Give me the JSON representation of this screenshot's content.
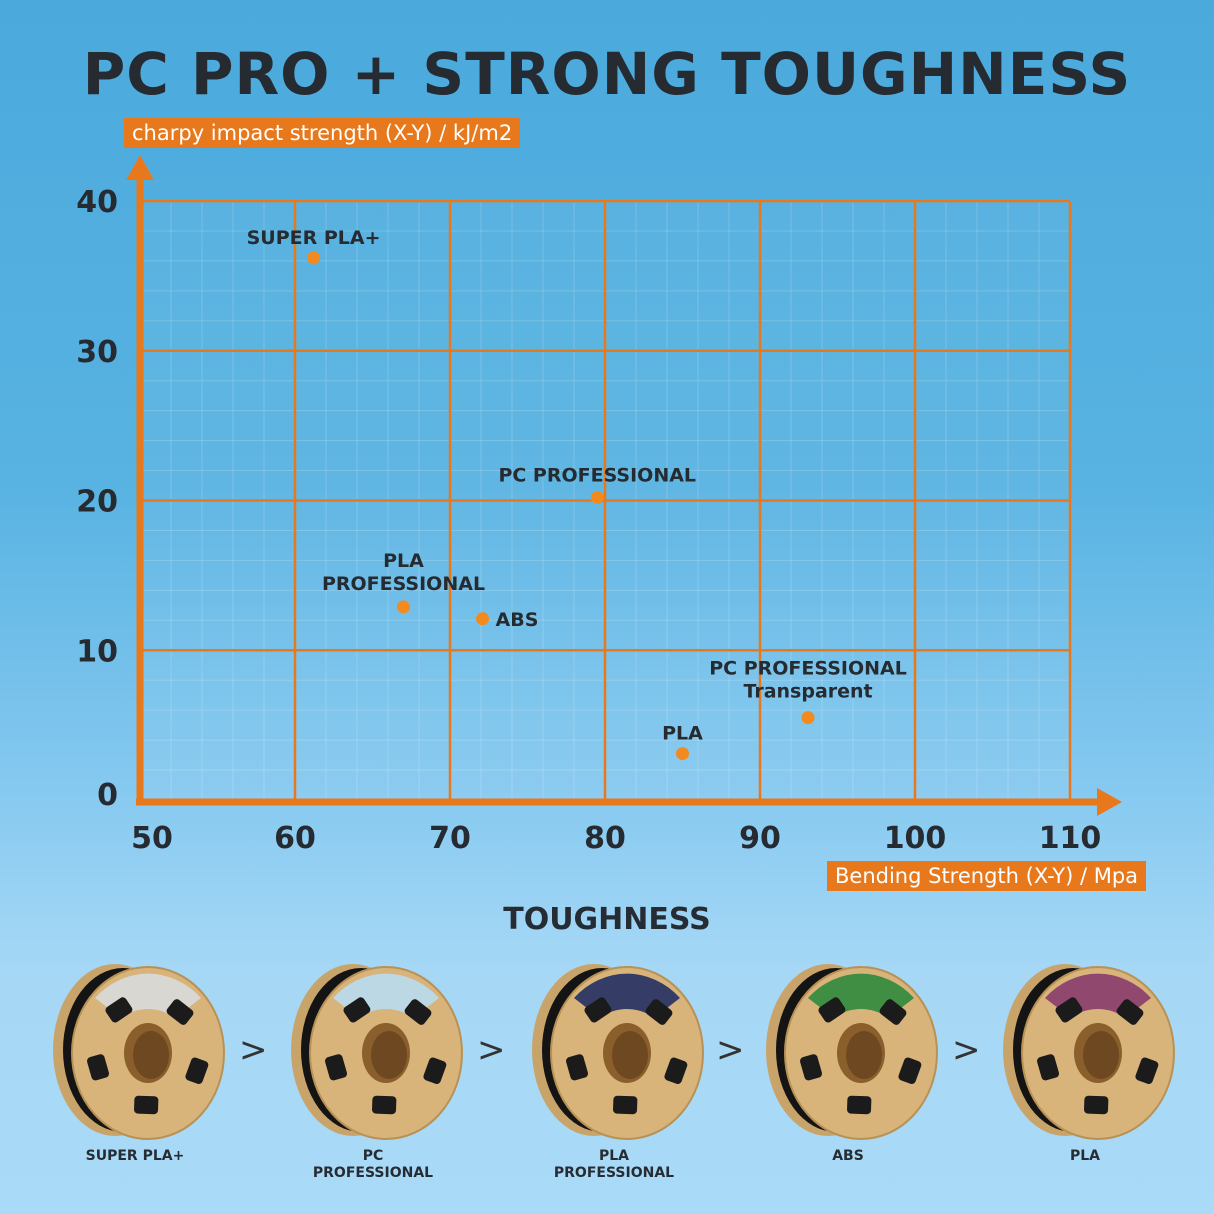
{
  "title": "PC PRO + STRONG TOUGHNESS",
  "chart_data": {
    "type": "scatter",
    "title": "PC PRO + STRONG TOUGHNESS",
    "xlabel": "Bending Strength (X-Y) / Mpa",
    "ylabel": "charpy impact strength (X-Y) / kJ/m2",
    "xlim": [
      50,
      110
    ],
    "ylim": [
      0,
      40
    ],
    "xticks": [
      50,
      60,
      70,
      80,
      90,
      100,
      110
    ],
    "yticks": [
      0,
      10,
      20,
      30,
      40
    ],
    "grid": true,
    "points": [
      {
        "label": "SUPER PLA+",
        "x": 61.2,
        "y": 36.2
      },
      {
        "label": "PC PROFESSIONAL",
        "x": 79.5,
        "y": 20.2
      },
      {
        "label": "PLA PROFESSIONAL",
        "x": 67.0,
        "y": 12.9
      },
      {
        "label": "ABS",
        "x": 72.1,
        "y": 12.1
      },
      {
        "label": "PC PROFESSIONAL Transparent",
        "x": 93.1,
        "y": 5.5
      },
      {
        "label": "PLA",
        "x": 85.0,
        "y": 3.1
      }
    ],
    "colors": {
      "axis": "#e8781c",
      "point": "#f28a1e"
    }
  },
  "toughness": {
    "title": "TOUGHNESS",
    "separator": ">",
    "items": [
      {
        "label": "SUPER PLA+",
        "label_color": "#d9dadb"
      },
      {
        "label": "PC PROFESSIONAL",
        "label_color": "#b9dcef"
      },
      {
        "label": "PLA PROFESSIONAL",
        "label_color": "#232f63"
      },
      {
        "label": "ABS",
        "label_color": "#2f8a3d"
      },
      {
        "label": "PLA",
        "label_color": "#8a3c6e"
      }
    ]
  }
}
